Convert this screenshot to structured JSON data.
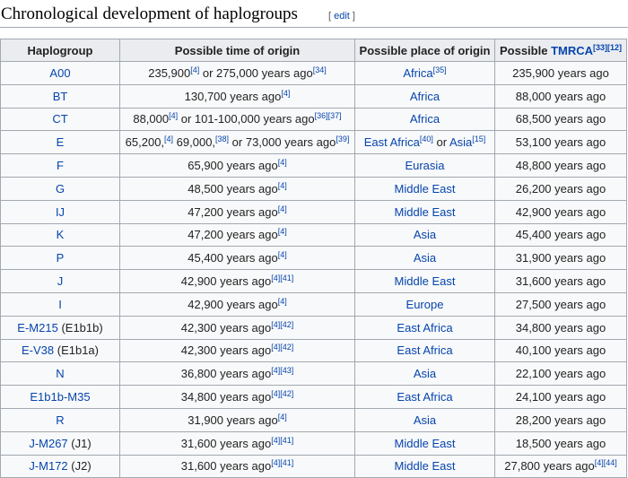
{
  "heading": {
    "title": "Chronological development of haplogroups",
    "edit": "edit"
  },
  "table": {
    "headers": [
      [
        "Haplogroup"
      ],
      [
        "Possible time of origin"
      ],
      [
        "Possible place of origin"
      ],
      [
        "Possible ",
        {
          "link": "TMRCA"
        },
        {
          "sup": "[33][12]"
        }
      ]
    ],
    "rows": [
      [
        [
          {
            "link": "A00"
          }
        ],
        [
          "235,900",
          {
            "sup": "[4]"
          },
          " or 275,000 years ago",
          {
            "sup": "[34]"
          }
        ],
        [
          {
            "link": "Africa"
          },
          {
            "sup": "[35]"
          }
        ],
        [
          "235,900 years ago"
        ]
      ],
      [
        [
          {
            "link": "BT"
          }
        ],
        [
          "130,700 years ago",
          {
            "sup": "[4]"
          }
        ],
        [
          {
            "link": "Africa"
          }
        ],
        [
          "88,000 years ago"
        ]
      ],
      [
        [
          {
            "link": "CT"
          }
        ],
        [
          "88,000",
          {
            "sup": "[4]"
          },
          " or 101-100,000 years ago",
          {
            "sup": "[36][37]"
          }
        ],
        [
          {
            "link": "Africa"
          }
        ],
        [
          "68,500 years ago"
        ]
      ],
      [
        [
          {
            "link": "E"
          }
        ],
        [
          "65,200,",
          {
            "sup": "[4]"
          },
          " 69,000,",
          {
            "sup": "[38]"
          },
          " or 73,000 years ago",
          {
            "sup": "[39]"
          }
        ],
        [
          {
            "link": "East Africa"
          },
          {
            "sup": "[40]"
          },
          " or ",
          {
            "link": "Asia"
          },
          {
            "sup": "[15]"
          }
        ],
        [
          "53,100 years ago"
        ]
      ],
      [
        [
          {
            "link": "F"
          }
        ],
        [
          "65,900 years ago",
          {
            "sup": "[4]"
          }
        ],
        [
          {
            "link": "Eurasia"
          }
        ],
        [
          "48,800 years ago"
        ]
      ],
      [
        [
          {
            "link": "G"
          }
        ],
        [
          "48,500 years ago",
          {
            "sup": "[4]"
          }
        ],
        [
          {
            "link": "Middle East"
          }
        ],
        [
          "26,200 years ago"
        ]
      ],
      [
        [
          {
            "link": "IJ"
          }
        ],
        [
          "47,200 years ago",
          {
            "sup": "[4]"
          }
        ],
        [
          {
            "link": "Middle East"
          }
        ],
        [
          "42,900 years ago"
        ]
      ],
      [
        [
          {
            "link": "K"
          }
        ],
        [
          "47,200 years ago",
          {
            "sup": "[4]"
          }
        ],
        [
          {
            "link": "Asia"
          }
        ],
        [
          "45,400 years ago"
        ]
      ],
      [
        [
          {
            "link": "P"
          }
        ],
        [
          "45,400 years ago",
          {
            "sup": "[4]"
          }
        ],
        [
          {
            "link": "Asia"
          }
        ],
        [
          "31,900 years ago"
        ]
      ],
      [
        [
          {
            "link": "J"
          }
        ],
        [
          "42,900 years ago",
          {
            "sup": "[4][41]"
          }
        ],
        [
          {
            "link": "Middle East"
          }
        ],
        [
          "31,600 years ago"
        ]
      ],
      [
        [
          {
            "link": "I"
          }
        ],
        [
          "42,900 years ago",
          {
            "sup": "[4]"
          }
        ],
        [
          {
            "link": "Europe"
          }
        ],
        [
          "27,500 years ago"
        ]
      ],
      [
        [
          {
            "link": "E-M215"
          },
          " (E1b1b)"
        ],
        [
          "42,300 years ago",
          {
            "sup": "[4][42]"
          }
        ],
        [
          {
            "link": "East Africa"
          }
        ],
        [
          "34,800 years ago"
        ]
      ],
      [
        [
          {
            "link": "E-V38"
          },
          " (E1b1a)"
        ],
        [
          "42,300 years ago",
          {
            "sup": "[4][42]"
          }
        ],
        [
          {
            "link": "East Africa"
          }
        ],
        [
          "40,100 years ago"
        ]
      ],
      [
        [
          {
            "link": "N"
          }
        ],
        [
          "36,800 years ago",
          {
            "sup": "[4][43]"
          }
        ],
        [
          {
            "link": "Asia"
          }
        ],
        [
          "22,100 years ago"
        ]
      ],
      [
        [
          {
            "link": "E1b1b-M35"
          }
        ],
        [
          "34,800 years ago",
          {
            "sup": "[4][42]"
          }
        ],
        [
          {
            "link": "East Africa"
          }
        ],
        [
          "24,100 years ago"
        ]
      ],
      [
        [
          {
            "link": "R"
          }
        ],
        [
          "31,900 years ago",
          {
            "sup": "[4]"
          }
        ],
        [
          {
            "link": "Asia"
          }
        ],
        [
          "28,200 years ago"
        ]
      ],
      [
        [
          {
            "link": "J-M267"
          },
          " (J1)"
        ],
        [
          "31,600 years ago",
          {
            "sup": "[4][41]"
          }
        ],
        [
          {
            "link": "Middle East"
          }
        ],
        [
          "18,500 years ago"
        ]
      ],
      [
        [
          {
            "link": "J-M172"
          },
          " (J2)"
        ],
        [
          "31,600 years ago",
          {
            "sup": "[4][41]"
          }
        ],
        [
          {
            "link": "Middle East"
          }
        ],
        [
          "27,800 years ago",
          {
            "sup": "[4][44]"
          }
        ]
      ]
    ]
  }
}
